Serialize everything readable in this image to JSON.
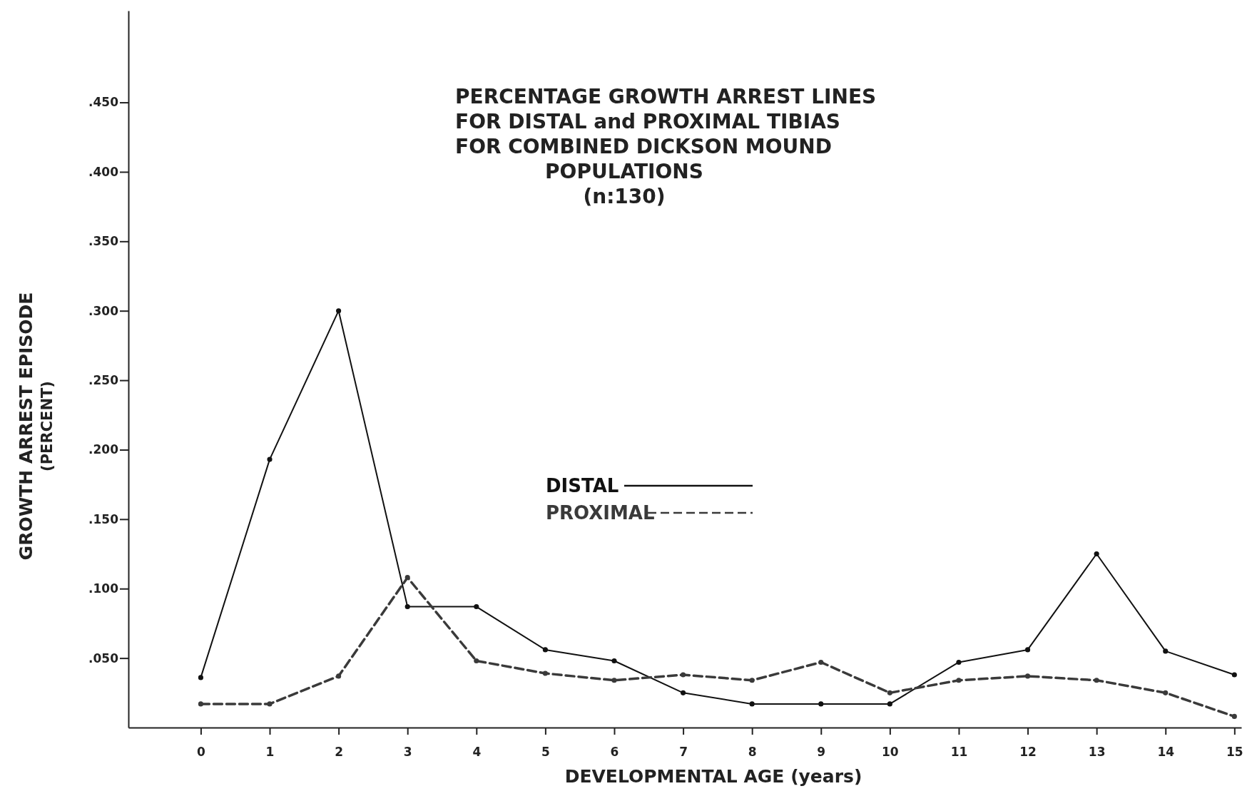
{
  "chart_data": {
    "type": "line",
    "title": "PERCENTAGE GROWTH ARREST LINES\nFOR DISTAL and PROXIMAL TIBIAS\nFOR COMBINED DICKSON MOUND\nPOPULATIONS\n(n:130)",
    "xlabel": "DEVELOPMENTAL AGE (years)",
    "ylabel": "GROWTH ARREST EPISODE\n(PERCENT)",
    "x": [
      0,
      1,
      2,
      3,
      4,
      5,
      6,
      7,
      8,
      9,
      10,
      11,
      12,
      13,
      14,
      15
    ],
    "series": [
      {
        "name": "DISTAL",
        "color": "#111111",
        "line_style": "solid",
        "values": [
          0.036,
          0.193,
          0.3,
          0.087,
          0.087,
          0.056,
          0.048,
          0.025,
          0.017,
          0.017,
          0.017,
          0.047,
          0.056,
          0.125,
          0.055,
          0.038
        ]
      },
      {
        "name": "PROXIMAL",
        "color": "#3a3a3a",
        "line_style": "dashed",
        "values": [
          0.017,
          0.017,
          0.037,
          0.108,
          0.048,
          0.039,
          0.034,
          0.038,
          0.034,
          0.047,
          0.025,
          0.034,
          0.037,
          0.034,
          0.025,
          0.008
        ]
      }
    ],
    "xlim": [
      -1.05,
      15.1
    ],
    "ylim": [
      0,
      0.516
    ],
    "xticks": [
      0,
      1,
      2,
      3,
      4,
      5,
      6,
      7,
      8,
      9,
      10,
      11,
      12,
      13,
      14,
      15
    ],
    "yticks": [
      {
        "value": 0.05,
        "label": ".050"
      },
      {
        "value": 0.1,
        "label": ".100"
      },
      {
        "value": 0.15,
        "label": ".150"
      },
      {
        "value": 0.2,
        "label": ".200"
      },
      {
        "value": 0.25,
        "label": ".250"
      },
      {
        "value": 0.3,
        "label": ".300"
      },
      {
        "value": 0.35,
        "label": ".350"
      },
      {
        "value": 0.4,
        "label": ".400"
      },
      {
        "value": 0.45,
        "label": ".450"
      }
    ],
    "marker": "circle",
    "legend": "center",
    "grid": false
  }
}
